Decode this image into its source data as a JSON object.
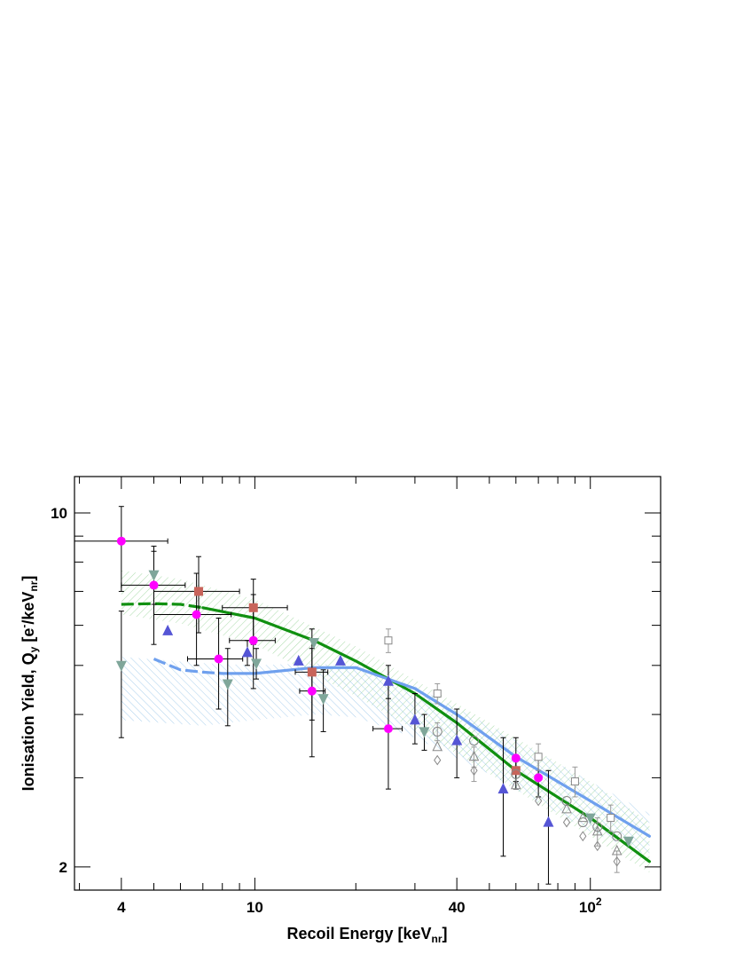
{
  "chart_data": {
    "type": "scatter",
    "title": "",
    "xlabel": "Recoil Energy [keV",
    "xlabel_sub": "nr",
    "xlabel_close": "]",
    "ylabel": "Ionisation Yield, Q",
    "ylabel_sub": "y",
    "ylabel_units": " [e",
    "ylabel_sup": "-",
    "ylabel_units2": "/keV",
    "ylabel_sub2": "nr",
    "ylabel_close": "]",
    "x_scale": "log",
    "y_scale": "log",
    "xlim": [
      2.9,
      162
    ],
    "ylim": [
      1.8,
      11.8
    ],
    "grid": false,
    "legend": "none",
    "x_ticks": [
      {
        "value": 4,
        "label": "4"
      },
      {
        "value": 10,
        "label": "10"
      },
      {
        "value": 40,
        "label": "40"
      },
      {
        "value": 100,
        "label": "10",
        "sup": "2"
      }
    ],
    "y_ticks": [
      {
        "value": 2,
        "label": "2"
      },
      {
        "value": 10,
        "label": "10"
      }
    ],
    "colors": {
      "magenta": "#ff00ff",
      "square": "#c8645a",
      "blue_triangle": "#5555d5",
      "teal_triangle": "#7fa69a",
      "gray_marker": "#888888",
      "green_line": "#109010",
      "blue_line": "#6fa0ee",
      "green_band": "#86cc86",
      "blue_band": "#86bce6"
    },
    "bands": [
      {
        "color": "green_band",
        "upper": [
          [
            4,
            7.7
          ],
          [
            6,
            7.4
          ],
          [
            10,
            6.75
          ],
          [
            20,
            5.45
          ],
          [
            40,
            4.2
          ],
          [
            100,
            2.95
          ],
          [
            150,
            2.45
          ]
        ],
        "lower": [
          [
            4,
            6.3
          ],
          [
            6,
            6.05
          ],
          [
            10,
            5.5
          ],
          [
            20,
            4.35
          ],
          [
            40,
            3.35
          ],
          [
            100,
            2.3
          ],
          [
            150,
            1.95
          ]
        ]
      },
      {
        "color": "blue_band",
        "upper": [
          [
            4,
            5.2
          ],
          [
            7,
            5.05
          ],
          [
            10,
            5.0
          ],
          [
            15,
            5.05
          ],
          [
            20,
            4.95
          ],
          [
            30,
            4.55
          ],
          [
            50,
            3.8
          ],
          [
            100,
            2.95
          ],
          [
            150,
            2.55
          ]
        ],
        "lower": [
          [
            4,
            3.9
          ],
          [
            7,
            3.8
          ],
          [
            10,
            3.9
          ],
          [
            15,
            4.0
          ],
          [
            20,
            3.95
          ],
          [
            30,
            3.6
          ],
          [
            50,
            3.05
          ],
          [
            100,
            2.35
          ],
          [
            150,
            2.1
          ]
        ]
      }
    ],
    "series": [
      {
        "marker": "circle",
        "color": "magenta",
        "points": [
          {
            "x": 4.0,
            "y": 8.8,
            "ylo": 7.0,
            "yhi": 10.3,
            "xlo": 2.9,
            "xhi": 5.5
          },
          {
            "x": 5.0,
            "y": 7.2,
            "ylo": 5.5,
            "yhi": 8.6,
            "xlo": 4.0,
            "xhi": 6.2
          },
          {
            "x": 6.7,
            "y": 6.3,
            "ylo": 5.0,
            "yhi": 7.6,
            "xlo": 5.0,
            "xhi": 8.5
          },
          {
            "x": 7.8,
            "y": 5.15,
            "ylo": 4.1,
            "yhi": 6.2,
            "xlo": 6.3,
            "xhi": 9.2
          },
          {
            "x": 9.9,
            "y": 5.6,
            "ylo": 4.5,
            "yhi": 6.9,
            "xlo": 8.4,
            "xhi": 11.5
          },
          {
            "x": 14.8,
            "y": 4.45,
            "ylo": 3.3,
            "yhi": 5.4,
            "xlo": 13.6,
            "xhi": 16.2
          },
          {
            "x": 25.0,
            "y": 3.75,
            "ylo": 2.85,
            "yhi": 4.65,
            "xlo": 22.5,
            "xhi": 27.5
          },
          {
            "x": 60.0,
            "y": 3.28,
            "ylo": 2.95,
            "yhi": 3.6
          },
          {
            "x": 70.0,
            "y": 3.0,
            "ylo": 2.75,
            "yhi": 3.25
          }
        ]
      },
      {
        "marker": "square",
        "color": "square",
        "points": [
          {
            "x": 6.8,
            "y": 7.0,
            "ylo": 5.8,
            "yhi": 8.2,
            "xlo": 5.0,
            "xhi": 9.0
          },
          {
            "x": 9.9,
            "y": 6.5,
            "ylo": 5.5,
            "yhi": 7.4,
            "xlo": 8.0,
            "xhi": 12.5
          },
          {
            "x": 14.8,
            "y": 4.85,
            "ylo": 3.9,
            "yhi": 5.9,
            "xlo": 13.2,
            "xhi": 16.5
          },
          {
            "x": 60.0,
            "y": 3.1,
            "ylo": 2.85,
            "yhi": 3.3
          }
        ]
      },
      {
        "marker": "triangle-up",
        "color": "blue_triangle",
        "points": [
          {
            "x": 5.5,
            "y": 5.85
          },
          {
            "x": 9.5,
            "y": 5.3,
            "ylo": 5.0,
            "yhi": 5.6
          },
          {
            "x": 13.5,
            "y": 5.1
          },
          {
            "x": 18.0,
            "y": 5.1
          },
          {
            "x": 25.0,
            "y": 4.65,
            "ylo": 4.3,
            "yhi": 5.0
          },
          {
            "x": 30.0,
            "y": 3.9,
            "ylo": 3.5,
            "yhi": 4.4
          },
          {
            "x": 40.0,
            "y": 3.55,
            "ylo": 3.0,
            "yhi": 4.1
          },
          {
            "x": 55.0,
            "y": 2.85,
            "ylo": 2.1,
            "yhi": 3.6
          },
          {
            "x": 75.0,
            "y": 2.45,
            "ylo": 1.85,
            "yhi": 3.1
          }
        ]
      },
      {
        "marker": "triangle-down",
        "color": "teal_triangle",
        "points": [
          {
            "x": 4.0,
            "y": 5.0,
            "ylo": 3.6,
            "yhi": 6.4
          },
          {
            "x": 5.0,
            "y": 7.55,
            "ylo": 6.6,
            "yhi": 8.4
          },
          {
            "x": 8.3,
            "y": 4.6,
            "ylo": 3.8,
            "yhi": 5.4
          },
          {
            "x": 10.1,
            "y": 5.05,
            "ylo": 4.7,
            "yhi": 5.4
          },
          {
            "x": 15.0,
            "y": 5.55
          },
          {
            "x": 16.0,
            "y": 4.3,
            "ylo": 3.7,
            "yhi": 4.9
          },
          {
            "x": 32.0,
            "y": 3.7,
            "ylo": 3.4,
            "yhi": 4.0
          },
          {
            "x": 100.0,
            "y": 2.5
          },
          {
            "x": 130.0,
            "y": 2.25
          }
        ]
      },
      {
        "marker": "open-square",
        "color": "gray_marker",
        "points": [
          {
            "x": 25.0,
            "y": 5.6,
            "ylo": 5.3,
            "yhi": 5.9
          },
          {
            "x": 35.0,
            "y": 4.4,
            "ylo": 4.2,
            "yhi": 4.6
          },
          {
            "x": 70.0,
            "y": 3.3,
            "ylo": 3.1,
            "yhi": 3.5
          },
          {
            "x": 90.0,
            "y": 2.95,
            "ylo": 2.75,
            "yhi": 3.15
          },
          {
            "x": 115.0,
            "y": 2.5,
            "ylo": 2.35,
            "yhi": 2.65
          }
        ]
      },
      {
        "marker": "open-circle",
        "color": "gray_marker",
        "points": [
          {
            "x": 35.0,
            "y": 3.7,
            "ylo": 3.55,
            "yhi": 3.85
          },
          {
            "x": 45.0,
            "y": 3.55
          },
          {
            "x": 60.0,
            "y": 3.05
          },
          {
            "x": 85.0,
            "y": 2.7
          },
          {
            "x": 95.0,
            "y": 2.45
          },
          {
            "x": 105.0,
            "y": 2.4
          },
          {
            "x": 120.0,
            "y": 2.3
          }
        ]
      },
      {
        "marker": "open-triangle",
        "color": "gray_marker",
        "points": [
          {
            "x": 35.0,
            "y": 3.45
          },
          {
            "x": 45.0,
            "y": 3.3,
            "ylo": 3.15,
            "yhi": 3.45
          },
          {
            "x": 60.0,
            "y": 2.9
          },
          {
            "x": 85.0,
            "y": 2.6
          },
          {
            "x": 95.0,
            "y": 2.5
          },
          {
            "x": 105.0,
            "y": 2.35,
            "ylo": 2.2,
            "yhi": 2.5
          },
          {
            "x": 120.0,
            "y": 2.15
          }
        ]
      },
      {
        "marker": "open-diamond",
        "color": "gray_marker",
        "points": [
          {
            "x": 35.0,
            "y": 3.25
          },
          {
            "x": 45.0,
            "y": 3.1,
            "ylo": 2.95,
            "yhi": 3.25
          },
          {
            "x": 70.0,
            "y": 2.7
          },
          {
            "x": 85.0,
            "y": 2.45
          },
          {
            "x": 95.0,
            "y": 2.3
          },
          {
            "x": 105.0,
            "y": 2.2
          },
          {
            "x": 120.0,
            "y": 2.05,
            "ylo": 1.95,
            "yhi": 2.15
          }
        ]
      }
    ],
    "curves": [
      {
        "color": "green_line",
        "dash": [
          [
            4,
            6.6
          ],
          [
            5,
            6.62
          ],
          [
            6,
            6.6
          ],
          [
            7,
            6.5
          ]
        ],
        "solid": [
          [
            7,
            6.5
          ],
          [
            10,
            6.2
          ],
          [
            15,
            5.6
          ],
          [
            20,
            5.1
          ],
          [
            30,
            4.4
          ],
          [
            40,
            3.85
          ],
          [
            60,
            3.1
          ],
          [
            100,
            2.5
          ],
          [
            150,
            2.05
          ]
        ]
      },
      {
        "color": "blue_line",
        "dash": [
          [
            5,
            5.15
          ],
          [
            6,
            4.9
          ],
          [
            7,
            4.85
          ],
          [
            8,
            4.82
          ]
        ],
        "solid": [
          [
            8,
            4.82
          ],
          [
            10,
            4.82
          ],
          [
            15,
            4.95
          ],
          [
            20,
            4.95
          ],
          [
            30,
            4.5
          ],
          [
            40,
            4.0
          ],
          [
            60,
            3.3
          ],
          [
            100,
            2.7
          ],
          [
            150,
            2.3
          ]
        ]
      }
    ]
  }
}
